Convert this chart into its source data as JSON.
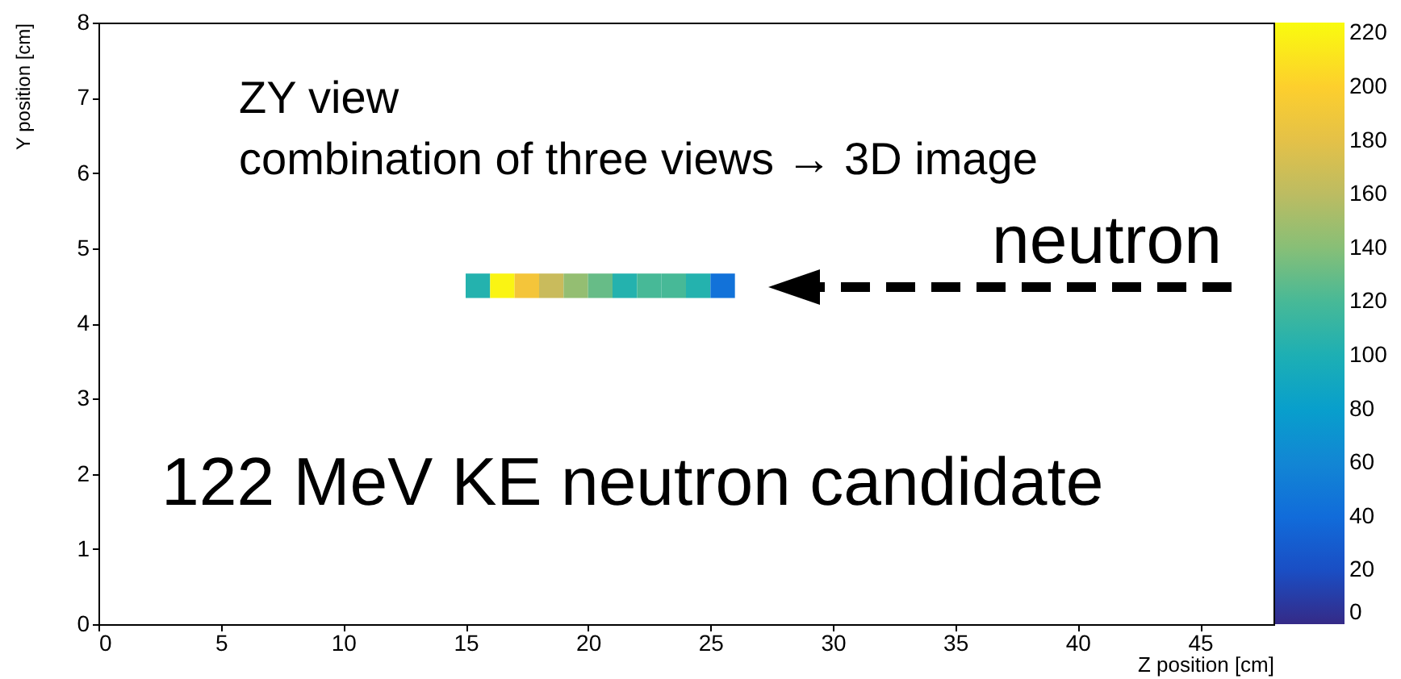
{
  "chart_data": {
    "type": "scatter",
    "marker": "square",
    "xlabel": "Z position [cm]",
    "ylabel": "Y position [cm]",
    "x": [
      15.5,
      16.5,
      17.5,
      18.5,
      19.5,
      20.5,
      21.5,
      22.5,
      23.5,
      24.5,
      25.5
    ],
    "values": [
      4.5,
      4.5,
      4.5,
      4.5,
      4.5,
      4.5,
      4.5,
      4.5,
      4.5,
      4.5,
      4.5
    ],
    "cvalues": [
      105,
      220,
      190,
      165,
      145,
      130,
      105,
      120,
      120,
      105,
      45
    ],
    "xlim": [
      0,
      48
    ],
    "ylim": [
      0,
      8
    ],
    "xticks": [
      0,
      5,
      10,
      15,
      20,
      25,
      30,
      35,
      40,
      45
    ],
    "yticks": [
      0,
      1,
      2,
      3,
      4,
      5,
      6,
      7,
      8
    ],
    "clim": [
      0,
      224
    ],
    "cticks": [
      0,
      20,
      40,
      60,
      80,
      100,
      120,
      140,
      160,
      180,
      200,
      220
    ],
    "annotations": [
      "ZY view",
      "combination of three views → 3D image",
      "neutron",
      "122 MeV KE neutron candidate"
    ]
  }
}
